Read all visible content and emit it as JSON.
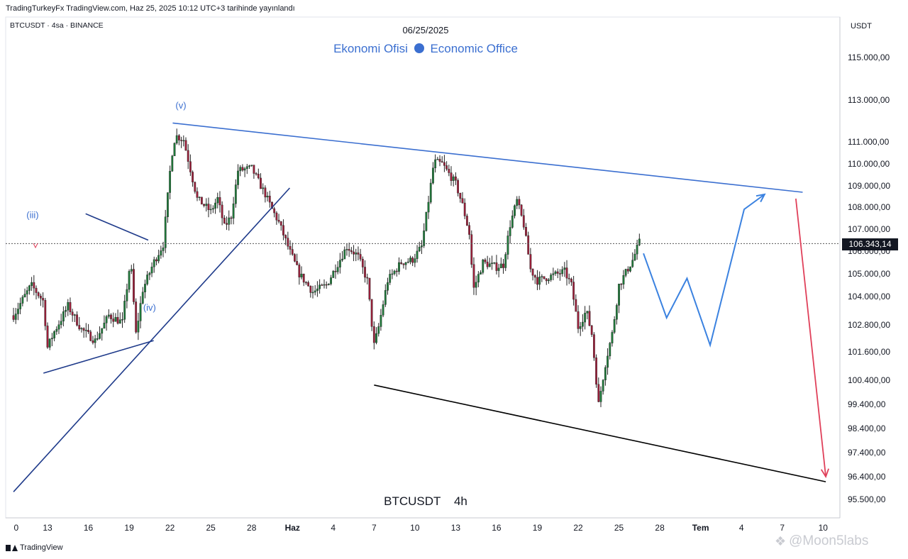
{
  "header": {
    "publish_line": "TradingTurkeyFx TradingView.com, Haz 25, 2025 10:12 UTC+3 tarihinde yayınlandı",
    "symbol_line": "BTCUSDT · 4sa · BINANCE",
    "date": "06/25/2025",
    "brand_left": "Ekonomi Ofisi",
    "brand_right": "Economic Office",
    "currency": "USDT"
  },
  "chart_data": {
    "type": "candlestick",
    "symbol": "BTCUSDT",
    "timeframe": "4h",
    "chart_label": "BTCUSDT    4h",
    "current_price": 106343.14,
    "current_price_label": "106.343,14",
    "y_tick_values": [
      115000,
      113000,
      111000,
      110000,
      109000,
      108000,
      107000,
      106000,
      105000,
      104000,
      102800,
      101600,
      100400,
      99400,
      98400,
      97400,
      96400,
      95500
    ],
    "y_tick_labels": [
      "115.000,00",
      "113.000,00",
      "111.000,00",
      "110.000,00",
      "109.000,00",
      "108.000,00",
      "107.000,00",
      "106.000,00",
      "105.000,00",
      "104.000,00",
      "102.800,00",
      "101.600,00",
      "100.400,00",
      "99.400,00",
      "98.400,00",
      "97.400,00",
      "96.400,00",
      "95.500,00"
    ],
    "x_tick_labels": [
      "0",
      "13",
      "16",
      "19",
      "22",
      "25",
      "28",
      "Haz",
      "4",
      "7",
      "10",
      "13",
      "16",
      "19",
      "22",
      "25",
      "28",
      "Tem",
      "4",
      "7",
      "10"
    ],
    "x_tick_days": [
      -2.3,
      0,
      3,
      6,
      9,
      12,
      15,
      18,
      21,
      24,
      27,
      30,
      33,
      36,
      39,
      42,
      45,
      48,
      51,
      54,
      57
    ],
    "x_day_zero": "13 May 2025",
    "wave_labels": [
      {
        "text": "(iii)",
        "day": -1.1,
        "price": 107500
      },
      {
        "text": "(iv)",
        "day": 7.5,
        "price": 103400
      },
      {
        "text": "(v)",
        "day": 9.8,
        "price": 112600
      }
    ],
    "price_anchors": [
      [
        -2.5,
        103200
      ],
      [
        -1.2,
        104500
      ],
      [
        -0.3,
        103800
      ],
      [
        0,
        101800
      ],
      [
        0.5,
        102500
      ],
      [
        1.5,
        103600
      ],
      [
        2.5,
        102600
      ],
      [
        3.5,
        102100
      ],
      [
        4.5,
        103200
      ],
      [
        5.5,
        102900
      ],
      [
        6.1,
        105600
      ],
      [
        6.5,
        102400
      ],
      [
        7,
        104300
      ],
      [
        7.8,
        105500
      ],
      [
        8.5,
        106300
      ],
      [
        9.1,
        110300
      ],
      [
        9.4,
        111300
      ],
      [
        10,
        111100
      ],
      [
        11,
        108400
      ],
      [
        12,
        107800
      ],
      [
        12.5,
        108400
      ],
      [
        13,
        107100
      ],
      [
        13.5,
        107600
      ],
      [
        14,
        109700
      ],
      [
        15,
        109800
      ],
      [
        16,
        108600
      ],
      [
        16.5,
        107900
      ],
      [
        17,
        107300
      ],
      [
        17.8,
        106000
      ],
      [
        18.5,
        105000
      ],
      [
        19.5,
        104200
      ],
      [
        20.5,
        104500
      ],
      [
        21.2,
        105300
      ],
      [
        22,
        106200
      ],
      [
        22.8,
        105800
      ],
      [
        23.5,
        104700
      ],
      [
        24,
        101900
      ],
      [
        24.3,
        102600
      ],
      [
        25,
        104700
      ],
      [
        26,
        105500
      ],
      [
        26.8,
        105600
      ],
      [
        27.5,
        106200
      ],
      [
        28,
        108300
      ],
      [
        28.4,
        110100
      ],
      [
        29,
        110000
      ],
      [
        30,
        109100
      ],
      [
        30.5,
        108100
      ],
      [
        31,
        106800
      ],
      [
        31.3,
        104300
      ],
      [
        32,
        105500
      ],
      [
        33,
        105300
      ],
      [
        33.5,
        105400
      ],
      [
        34,
        107200
      ],
      [
        34.5,
        108300
      ],
      [
        35,
        107200
      ],
      [
        35.5,
        105200
      ],
      [
        36,
        104700
      ],
      [
        37,
        104900
      ],
      [
        38,
        105100
      ],
      [
        38.5,
        104500
      ],
      [
        39,
        102700
      ],
      [
        39.6,
        103400
      ],
      [
        40,
        102400
      ],
      [
        40.5,
        99400
      ],
      [
        41,
        101100
      ],
      [
        41.5,
        102400
      ],
      [
        42,
        104500
      ],
      [
        43,
        105600
      ],
      [
        43.5,
        106400
      ],
      [
        43.6,
        106343
      ]
    ],
    "lines": [
      {
        "name": "upper-resistance",
        "color": "#3b6fd0",
        "points": [
          [
            9.2,
            111900
          ],
          [
            55.5,
            108700
          ]
        ]
      },
      {
        "name": "lower-support",
        "color": "#000000",
        "points": [
          [
            24,
            100200
          ],
          [
            57.2,
            96200
          ]
        ]
      },
      {
        "name": "rising-support",
        "color": "#1e3a8a",
        "points": [
          [
            -2.5,
            95800
          ],
          [
            17.8,
            108900
          ]
        ]
      },
      {
        "name": "wave-iii-iv-lower",
        "color": "#1e3a8a",
        "points": [
          [
            -0.3,
            100700
          ],
          [
            7.8,
            102100
          ]
        ]
      },
      {
        "name": "wave-iii-iv-upper",
        "color": "#1e3a8a",
        "points": [
          [
            2.8,
            107700
          ],
          [
            7.4,
            106500
          ]
        ]
      }
    ],
    "projection_blue": [
      [
        43.8,
        105900
      ],
      [
        45.5,
        103100
      ],
      [
        47,
        104800
      ],
      [
        48.7,
        101900
      ],
      [
        51.2,
        107900
      ],
      [
        52.7,
        108600
      ]
    ],
    "projection_red": [
      [
        55,
        108400
      ],
      [
        57.2,
        96400
      ]
    ],
    "y_range": [
      95300,
      116400
    ],
    "grid": false
  },
  "footer": {
    "brand": "TradingView",
    "watermark": "@Moon5labs"
  }
}
